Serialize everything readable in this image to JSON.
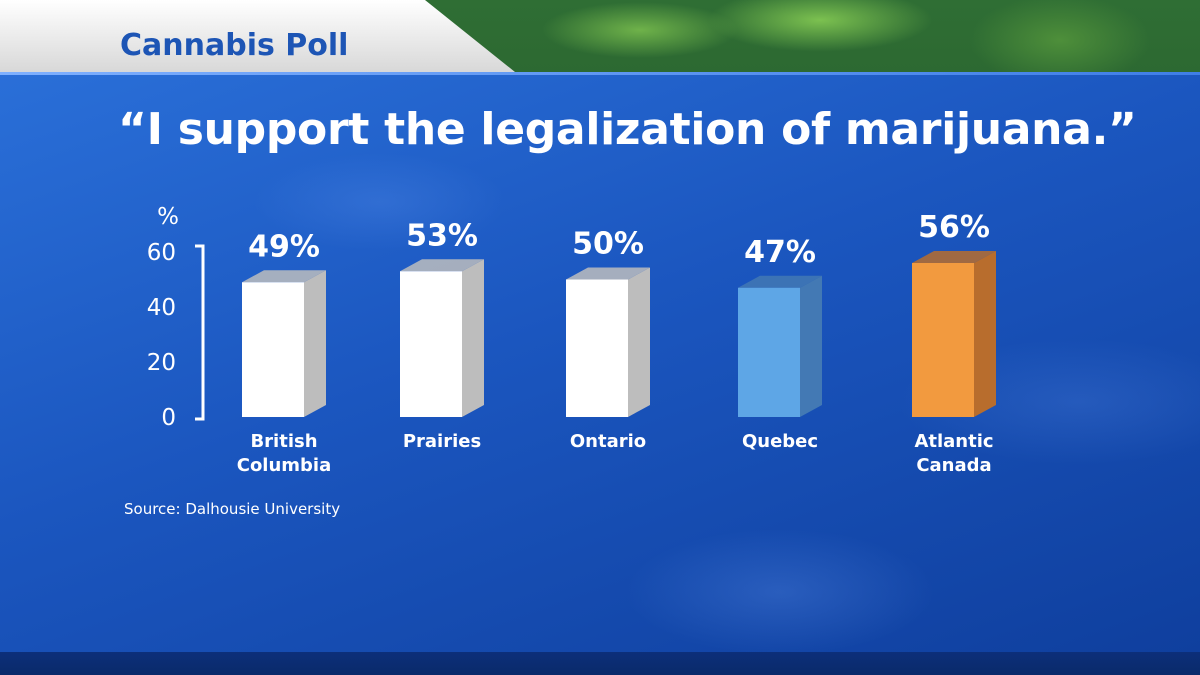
{
  "header": {
    "tab_title": "Cannabis Poll"
  },
  "headline": "“I support the legalization of marijuana.”",
  "source": "Source: Dalhousie University",
  "colors": {
    "panel_blue": "#1b56bf",
    "bar_default": "#ffffff",
    "bar_quebec": "#5ea6e6",
    "bar_atlantic": "#f29a3f"
  },
  "chart_data": {
    "type": "bar",
    "ylabel": "%",
    "ylim": [
      0,
      60
    ],
    "yticks": [
      0,
      20,
      40,
      60
    ],
    "grid": false,
    "categories": [
      {
        "label": [
          "British",
          "Columbia"
        ],
        "value": 49,
        "value_label": "49%",
        "color": "#ffffff",
        "side": "#bdbdbd"
      },
      {
        "label": [
          "Prairies"
        ],
        "value": 53,
        "value_label": "53%",
        "color": "#ffffff",
        "side": "#bdbdbd"
      },
      {
        "label": [
          "Ontario"
        ],
        "value": 50,
        "value_label": "50%",
        "color": "#ffffff",
        "side": "#bdbdbd"
      },
      {
        "label": [
          "Quebec"
        ],
        "value": 47,
        "value_label": "47%",
        "color": "#5ea6e6",
        "side": "#4379b4"
      },
      {
        "label": [
          "Atlantic",
          "Canada"
        ],
        "value": 56,
        "value_label": "56%",
        "color": "#f29a3f",
        "side": "#b86d2d"
      }
    ]
  }
}
